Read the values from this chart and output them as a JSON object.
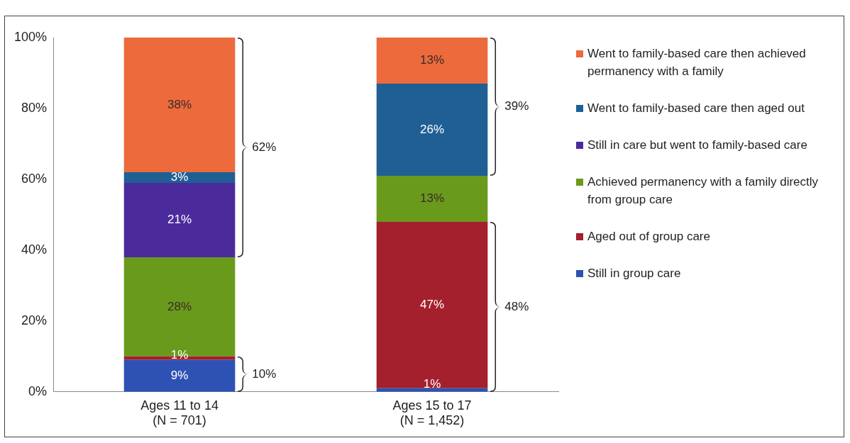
{
  "chart_data": {
    "type": "bar",
    "stacked": true,
    "categories": [
      "Ages 11 to 14\n(N = 701)",
      "Ages 15 to 17\n(N = 1,452)"
    ],
    "series": [
      {
        "name": "Still in group care",
        "color": "#2d52b4",
        "values": [
          9,
          1
        ],
        "value_labels": [
          "9%",
          "1%"
        ]
      },
      {
        "name": "Aged out of group care",
        "color": "#a3202c",
        "values": [
          1,
          47
        ],
        "value_labels": [
          "1%",
          "47%"
        ]
      },
      {
        "name": "Achieved permanency with a family directly from group care",
        "color": "#6a9a1c",
        "values": [
          28,
          13
        ],
        "value_labels": [
          "28%",
          "13%"
        ]
      },
      {
        "name": "Still in care but went to family-based care",
        "color": "#4b2b9c",
        "values": [
          21,
          null
        ],
        "value_labels": [
          "21%",
          null
        ]
      },
      {
        "name": "Went to family-based care then aged out",
        "color": "#1f5f94",
        "values": [
          3,
          26
        ],
        "value_labels": [
          "3%",
          "26%"
        ]
      },
      {
        "name": "Went to family-based care then achieved permanency with a family",
        "color": "#ec6a3c",
        "values": [
          38,
          13
        ],
        "value_labels": [
          "38%",
          "13%"
        ]
      }
    ],
    "ylim": [
      0,
      100
    ],
    "yticks": [
      {
        "value": 0,
        "label": "0%"
      },
      {
        "value": 20,
        "label": "20%"
      },
      {
        "value": 40,
        "label": "40%"
      },
      {
        "value": 60,
        "label": "60%"
      },
      {
        "value": 80,
        "label": "80%"
      },
      {
        "value": 100,
        "label": "100%"
      }
    ],
    "grid": false,
    "legend": "right",
    "annotations": [
      "62%",
      "10%",
      "39%",
      "48%"
    ]
  }
}
